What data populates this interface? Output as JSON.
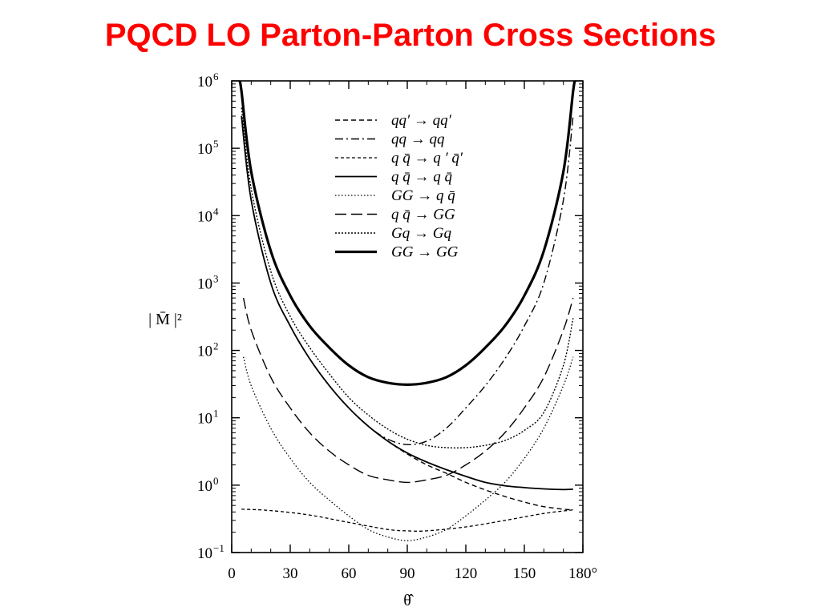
{
  "slide": {
    "title": "PQCD LO Parton-Parton Cross Sections"
  },
  "chart_data": {
    "type": "line",
    "ylabel": "| M̄ |²",
    "xlabel": "θ̂",
    "xlim": [
      0,
      180
    ],
    "ylim": [
      0.1,
      1000000
    ],
    "yscale": "log",
    "grid": false,
    "legend_position": "top-center",
    "x_ticks": [
      "0",
      "30",
      "60",
      "90",
      "120",
      "150",
      "180°"
    ],
    "x_tick_values": [
      0,
      30,
      60,
      90,
      120,
      150,
      180
    ],
    "y_ticks": [
      {
        "base": "10",
        "exp": "6",
        "value": 1000000
      },
      {
        "base": "10",
        "exp": "5",
        "value": 100000
      },
      {
        "base": "10",
        "exp": "4",
        "value": 10000
      },
      {
        "base": "10",
        "exp": "3",
        "value": 1000
      },
      {
        "base": "10",
        "exp": "2",
        "value": 100
      },
      {
        "base": "10",
        "exp": "1",
        "value": 10
      },
      {
        "base": "10",
        "exp": "0",
        "value": 1
      },
      {
        "base": "10",
        "exp": "−1",
        "value": 0.1
      }
    ],
    "series": [
      {
        "name": "qq′ → qq′",
        "style": "dashed",
        "x": [
          5,
          10,
          20,
          30,
          40,
          50,
          60,
          70,
          80,
          90,
          100,
          110,
          120,
          130,
          140,
          150,
          160,
          170,
          175
        ],
        "values": [
          300000,
          17000,
          1000,
          230,
          75,
          30,
          14,
          7.5,
          4.5,
          2.9,
          2.0,
          1.5,
          1.1,
          0.85,
          0.68,
          0.56,
          0.48,
          0.44,
          0.43
        ]
      },
      {
        "name": "qq → qq",
        "style": "dash-dot",
        "x": [
          5,
          10,
          20,
          30,
          40,
          50,
          60,
          70,
          80,
          90,
          100,
          110,
          120,
          130,
          140,
          150,
          160,
          170,
          175
        ],
        "values": [
          300000,
          17000,
          1000,
          230,
          75,
          30,
          14,
          7.5,
          4.8,
          4.0,
          4.5,
          7.0,
          14,
          30,
          75,
          230,
          1000,
          17000,
          300000
        ]
      },
      {
        "name": "q q̄ → q ′ q̄′",
        "style": "dashed-fine",
        "x": [
          5,
          20,
          40,
          60,
          80,
          90,
          100,
          120,
          140,
          160,
          175
        ],
        "values": [
          0.44,
          0.42,
          0.36,
          0.28,
          0.22,
          0.21,
          0.21,
          0.24,
          0.3,
          0.38,
          0.43
        ]
      },
      {
        "name": "q q̄ → q q̄",
        "style": "solid",
        "x": [
          5,
          10,
          20,
          30,
          40,
          50,
          60,
          70,
          80,
          90,
          100,
          110,
          120,
          130,
          140,
          150,
          160,
          170,
          175
        ],
        "values": [
          300000,
          17000,
          1000,
          230,
          75,
          30,
          14,
          7.5,
          4.5,
          3.0,
          2.2,
          1.7,
          1.35,
          1.1,
          0.98,
          0.92,
          0.88,
          0.86,
          0.87
        ]
      },
      {
        "name": "GG → q q̄",
        "style": "dotted",
        "x": [
          6,
          10,
          20,
          30,
          40,
          50,
          60,
          70,
          80,
          90,
          100,
          110,
          120,
          130,
          140,
          150,
          160,
          170,
          175
        ],
        "values": [
          80,
          30,
          7,
          2.5,
          1.1,
          0.6,
          0.35,
          0.22,
          0.17,
          0.15,
          0.17,
          0.22,
          0.35,
          0.6,
          1.1,
          2.5,
          7,
          30,
          80
        ]
      },
      {
        "name": "q q̄ → GG",
        "style": "long-dash",
        "x": [
          6,
          10,
          20,
          30,
          40,
          50,
          60,
          70,
          80,
          90,
          100,
          110,
          120,
          130,
          140,
          150,
          160,
          170,
          175
        ],
        "values": [
          600,
          200,
          40,
          14,
          6,
          3.2,
          2,
          1.4,
          1.2,
          1.1,
          1.2,
          1.4,
          2,
          3.2,
          6,
          14,
          40,
          200,
          600
        ]
      },
      {
        "name": "Gq → Gq",
        "style": "dotted-dense",
        "x": [
          5,
          10,
          20,
          30,
          40,
          50,
          60,
          70,
          80,
          90,
          100,
          110,
          120,
          130,
          140,
          150,
          160,
          170,
          175
        ],
        "values": [
          400000,
          25000,
          1500,
          320,
          110,
          45,
          20,
          11,
          6.8,
          4.8,
          3.9,
          3.6,
          3.6,
          3.9,
          4.6,
          6.5,
          12,
          60,
          300
        ]
      },
      {
        "name": "GG → GG",
        "style": "solid-bold",
        "x": [
          4,
          5,
          10,
          20,
          30,
          40,
          50,
          60,
          70,
          80,
          90,
          100,
          110,
          120,
          130,
          140,
          150,
          160,
          170,
          175,
          176
        ],
        "values": [
          1000000,
          700000,
          45000,
          3000,
          650,
          230,
          110,
          60,
          40,
          33,
          31,
          33,
          40,
          60,
          110,
          230,
          650,
          3000,
          45000,
          700000,
          1000000
        ]
      }
    ]
  }
}
